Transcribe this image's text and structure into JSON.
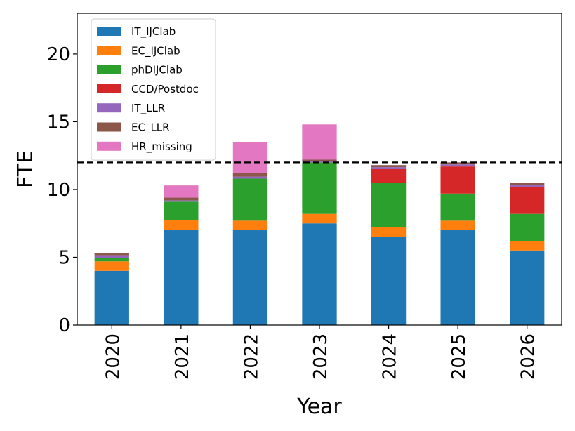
{
  "chart_data": {
    "type": "bar",
    "stacked": true,
    "categories": [
      "2020",
      "2021",
      "2022",
      "2023",
      "2024",
      "2025",
      "2026"
    ],
    "series": [
      {
        "name": "IT_IJClab",
        "color": "#1f77b4",
        "values": [
          4.0,
          7.0,
          7.0,
          7.5,
          6.5,
          7.0,
          5.5
        ]
      },
      {
        "name": "EC_IJClab",
        "color": "#ff7f0e",
        "values": [
          0.7,
          0.75,
          0.7,
          0.7,
          0.7,
          0.7,
          0.7
        ]
      },
      {
        "name": "phDIJClab",
        "color": "#2ca02c",
        "values": [
          0.25,
          1.35,
          3.1,
          3.8,
          3.3,
          2.0,
          2.0
        ]
      },
      {
        "name": "CCD/Postdoc",
        "color": "#d62728",
        "values": [
          0.0,
          0.0,
          0.0,
          0.0,
          1.0,
          2.0,
          2.0
        ]
      },
      {
        "name": "IT_LLR",
        "color": "#9467bd",
        "values": [
          0.2,
          0.1,
          0.15,
          0.1,
          0.15,
          0.15,
          0.15
        ]
      },
      {
        "name": "EC_LLR",
        "color": "#8c564b",
        "values": [
          0.15,
          0.2,
          0.25,
          0.1,
          0.15,
          0.15,
          0.15
        ]
      },
      {
        "name": "HR_missing",
        "color": "#e377c2",
        "values": [
          0.0,
          0.9,
          2.3,
          2.6,
          0.0,
          0.0,
          0.0
        ]
      }
    ],
    "reference_line": {
      "y": 12,
      "style": "dashed",
      "color": "#000000"
    },
    "title": "",
    "xlabel": "Year",
    "ylabel": "FTE",
    "ylim": [
      0,
      23
    ],
    "yticks": [
      "0",
      "5",
      "10",
      "15",
      "20"
    ],
    "legend_position": "top-left",
    "grid": false
  }
}
